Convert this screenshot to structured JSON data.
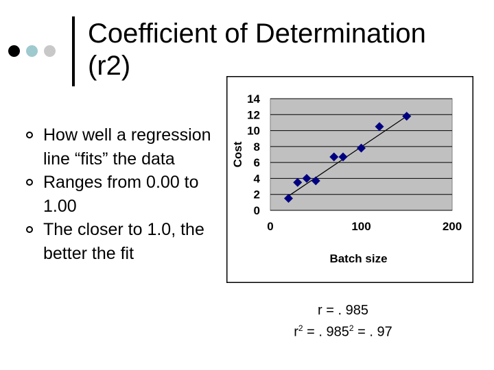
{
  "slide": {
    "title_line1": "Coefficient of Determination",
    "title_line2": "(r2)",
    "bullets": [
      "How well a regression line “fits” the data",
      "Ranges from 0.00 to 1.00",
      "The closer to 1.0, the better the fit"
    ],
    "stats": {
      "r_line": "r = . 985",
      "r2_r": "r",
      "r2_sup1": "2",
      "r2_mid": " = . 985",
      "r2_sup2": "2",
      "r2_end": " = . 97"
    }
  },
  "colors": {
    "dot1": "#000000",
    "dot2": "#9ec9cf",
    "dot3": "#c8c8c8",
    "plot_area": "#c0c0c0",
    "marker": "#000080"
  },
  "chart_data": {
    "type": "scatter",
    "title": "",
    "xlabel": "Batch size",
    "ylabel": "Cost",
    "xlim": [
      0,
      200
    ],
    "ylim": [
      0,
      14
    ],
    "xticks": [
      "0",
      "100",
      "200"
    ],
    "yticks": [
      "0",
      "2",
      "4",
      "6",
      "8",
      "10",
      "12",
      "14"
    ],
    "grid": true,
    "legend": "none",
    "marker": "diamond",
    "series": [
      {
        "x": [
          20,
          30,
          40,
          50,
          70,
          80,
          100,
          120,
          150
        ],
        "y": [
          1.5,
          3.5,
          4,
          3.7,
          6.7,
          6.7,
          7.8,
          10.5,
          11.8
        ]
      }
    ],
    "trendline": {
      "x": [
        20,
        150
      ],
      "y": [
        1.8,
        11.8
      ]
    }
  }
}
